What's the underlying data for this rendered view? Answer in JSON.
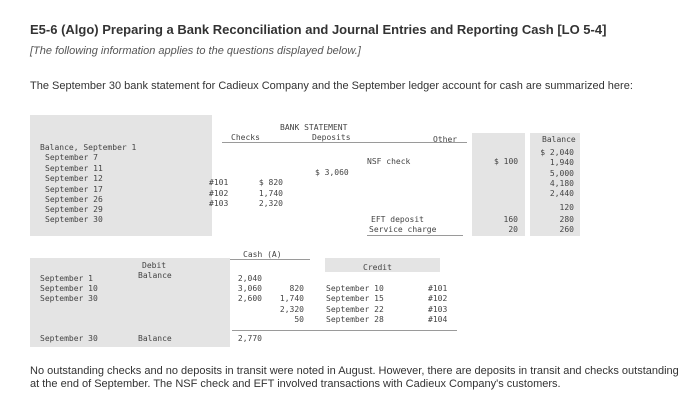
{
  "header": {
    "title": "E5-6 (Algo) Preparing a Bank Reconciliation and Journal Entries and Reporting Cash [LO 5-4]",
    "subtitle": "[The following information applies to the questions displayed below.]",
    "intro": "The September 30 bank statement for Cadieux Company and the September ledger account for cash are summarized here:"
  },
  "bank_statement": {
    "title": "BANK STATEMENT",
    "col_checks": "Checks",
    "col_deposits": "Deposits",
    "col_other": "Other",
    "col_balance": "Balance",
    "row_labels": [
      "Balance, September 1",
      "September 7",
      "September 11",
      "September 12",
      "September 17",
      "September 26",
      "September 29",
      "September 30"
    ],
    "check_numbers": [
      "#101",
      "#102",
      "#103"
    ],
    "check_amounts": [
      "$ 820",
      "1,740",
      "2,320"
    ],
    "deposit": "$ 3,060",
    "nsf_label": "NSF check",
    "nsf_amount": "$ 100",
    "eft_label": "EFT deposit",
    "eft_amount": "160",
    "service_label": "Service charge",
    "service_amount": "20",
    "balances": [
      "$ 2,040",
      "1,940",
      "5,000",
      "4,180",
      "2,440",
      "120",
      "280",
      "260"
    ]
  },
  "cash_account": {
    "title": "Cash (A)",
    "col_debit": "Debit",
    "col_balance": "Balance",
    "col_credit": "Credit",
    "debit_labels": [
      "September 1",
      "September 10",
      "September 30"
    ],
    "debit_amounts": [
      "2,040",
      "3,060",
      "2,600"
    ],
    "credit_amounts": [
      "820",
      "1,740",
      "2,320",
      "50"
    ],
    "credit_dates": [
      "September 10",
      "September 15",
      "September 22",
      "September 28"
    ],
    "credit_checks": [
      "#101",
      "#102",
      "#103",
      "#104"
    ],
    "ending_label": "September 30",
    "ending_word": "Balance",
    "ending_balance": "2,770"
  },
  "note": "No outstanding checks and no deposits in transit were noted in August. However, there are deposits in transit and checks outstanding at the end of September. The NSF check and EFT involved transactions with Cadieux Company's customers."
}
